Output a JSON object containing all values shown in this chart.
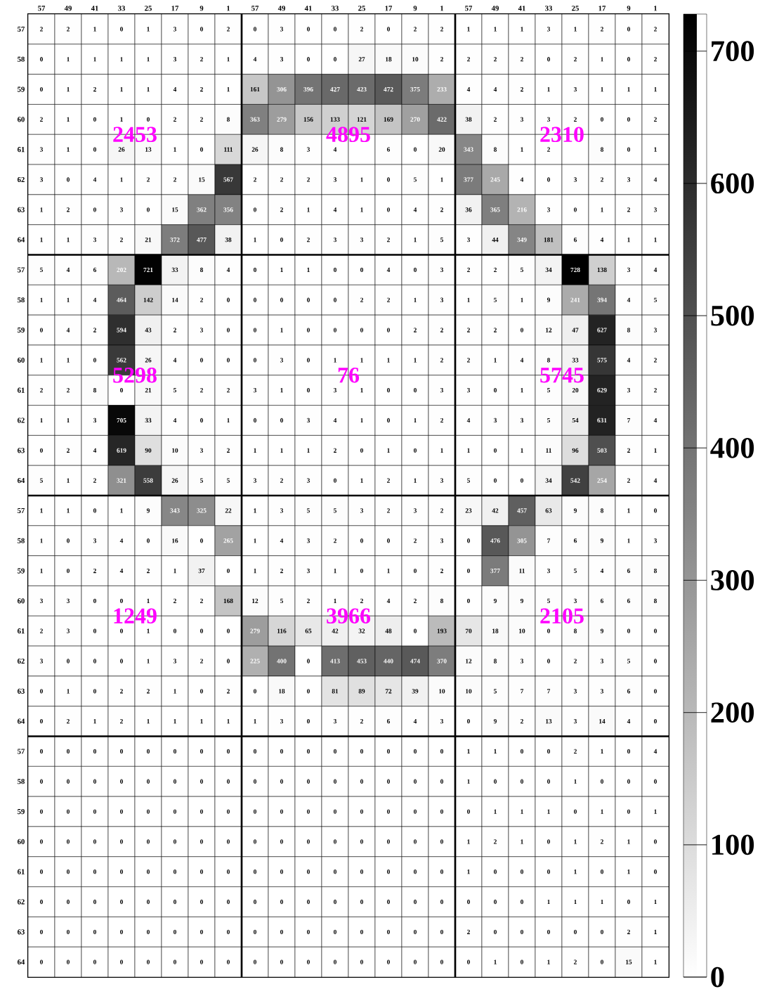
{
  "chart_data": {
    "type": "heatmap",
    "categories": [
      "57",
      "49",
      "41",
      "33",
      "25",
      "17",
      "9",
      "1",
      "57",
      "49",
      "41",
      "33",
      "25",
      "17",
      "9",
      "1",
      "57",
      "49",
      "41",
      "33",
      "25",
      "17",
      "9",
      "1"
    ],
    "y_categories": [
      "57",
      "58",
      "59",
      "60",
      "61",
      "62",
      "63",
      "64",
      "57",
      "58",
      "59",
      "60",
      "61",
      "62",
      "63",
      "64",
      "57",
      "58",
      "59",
      "60",
      "61",
      "62",
      "63",
      "64",
      "57",
      "58",
      "59",
      "60",
      "61",
      "62",
      "63",
      "64"
    ],
    "cells": [
      [
        2,
        2,
        1,
        0,
        1,
        3,
        0,
        2,
        0,
        3,
        0,
        0,
        2,
        0,
        2,
        2,
        1,
        1,
        1,
        3,
        1,
        2,
        0,
        2
      ],
      [
        0,
        1,
        1,
        1,
        1,
        3,
        2,
        1,
        4,
        3,
        0,
        0,
        27,
        18,
        10,
        2,
        2,
        2,
        2,
        0,
        2,
        1,
        0,
        2
      ],
      [
        0,
        1,
        2,
        1,
        1,
        4,
        2,
        1,
        161,
        306,
        396,
        427,
        423,
        472,
        375,
        233,
        4,
        4,
        2,
        1,
        3,
        1,
        1,
        1
      ],
      [
        2,
        1,
        0,
        1,
        0,
        2,
        2,
        8,
        363,
        279,
        156,
        133,
        121,
        169,
        270,
        422,
        38,
        2,
        3,
        3,
        2,
        0,
        0,
        2
      ],
      [
        3,
        1,
        0,
        26,
        13,
        1,
        0,
        111,
        26,
        8,
        3,
        4,
        null,
        6,
        0,
        20,
        343,
        8,
        1,
        2,
        null,
        8,
        0,
        1
      ],
      [
        3,
        0,
        4,
        1,
        2,
        2,
        15,
        567,
        2,
        2,
        2,
        3,
        1,
        0,
        5,
        1,
        377,
        245,
        4,
        0,
        3,
        2,
        3,
        4
      ],
      [
        1,
        2,
        0,
        3,
        0,
        15,
        362,
        356,
        0,
        2,
        1,
        4,
        1,
        0,
        4,
        2,
        36,
        365,
        216,
        3,
        0,
        1,
        2,
        3
      ],
      [
        1,
        1,
        3,
        2,
        21,
        372,
        477,
        38,
        1,
        0,
        2,
        3,
        3,
        2,
        1,
        5,
        3,
        44,
        349,
        181,
        6,
        4,
        1,
        1
      ],
      [
        5,
        4,
        6,
        202,
        721,
        33,
        8,
        4,
        0,
        1,
        1,
        0,
        0,
        4,
        0,
        3,
        2,
        2,
        5,
        34,
        728,
        138,
        3,
        4
      ],
      [
        1,
        1,
        4,
        464,
        142,
        14,
        2,
        0,
        0,
        0,
        0,
        0,
        2,
        2,
        1,
        3,
        1,
        5,
        1,
        9,
        241,
        394,
        4,
        5
      ],
      [
        0,
        4,
        2,
        594,
        43,
        2,
        3,
        0,
        0,
        1,
        0,
        0,
        0,
        0,
        2,
        2,
        2,
        2,
        0,
        12,
        47,
        627,
        8,
        3
      ],
      [
        1,
        1,
        0,
        562,
        26,
        4,
        0,
        0,
        0,
        3,
        0,
        1,
        1,
        1,
        1,
        2,
        2,
        1,
        4,
        8,
        33,
        575,
        4,
        2
      ],
      [
        2,
        2,
        8,
        0,
        21,
        5,
        2,
        2,
        3,
        1,
        0,
        3,
        1,
        0,
        0,
        3,
        3,
        0,
        1,
        5,
        20,
        629,
        3,
        2
      ],
      [
        1,
        1,
        3,
        705,
        33,
        4,
        0,
        1,
        0,
        0,
        3,
        4,
        1,
        0,
        1,
        2,
        4,
        3,
        3,
        5,
        54,
        631,
        7,
        4
      ],
      [
        0,
        2,
        4,
        619,
        90,
        10,
        3,
        2,
        1,
        1,
        1,
        2,
        0,
        1,
        0,
        1,
        1,
        0,
        1,
        11,
        96,
        503,
        2,
        1
      ],
      [
        5,
        1,
        2,
        321,
        558,
        26,
        5,
        5,
        3,
        2,
        3,
        0,
        1,
        2,
        1,
        3,
        5,
        0,
        0,
        34,
        542,
        254,
        2,
        4
      ],
      [
        1,
        1,
        0,
        1,
        9,
        343,
        325,
        22,
        1,
        3,
        5,
        5,
        3,
        2,
        3,
        2,
        23,
        42,
        457,
        63,
        9,
        8,
        1,
        0
      ],
      [
        1,
        0,
        3,
        4,
        0,
        16,
        0,
        265,
        1,
        4,
        3,
        2,
        0,
        0,
        2,
        3,
        0,
        476,
        305,
        7,
        6,
        9,
        1,
        3
      ],
      [
        1,
        0,
        2,
        4,
        2,
        1,
        37,
        0,
        1,
        2,
        3,
        1,
        0,
        1,
        0,
        2,
        0,
        377,
        11,
        3,
        5,
        4,
        6,
        8
      ],
      [
        3,
        3,
        0,
        0,
        1,
        2,
        2,
        168,
        12,
        5,
        2,
        1,
        2,
        4,
        2,
        8,
        0,
        9,
        9,
        5,
        3,
        6,
        6,
        8
      ],
      [
        2,
        3,
        0,
        0,
        1,
        0,
        0,
        0,
        279,
        116,
        65,
        42,
        32,
        48,
        0,
        193,
        70,
        18,
        10,
        0,
        8,
        9,
        0,
        0
      ],
      [
        3,
        0,
        0,
        0,
        1,
        3,
        2,
        0,
        225,
        400,
        0,
        413,
        453,
        440,
        474,
        370,
        12,
        8,
        3,
        0,
        2,
        3,
        5,
        0
      ],
      [
        0,
        1,
        0,
        2,
        2,
        1,
        0,
        2,
        0,
        18,
        0,
        81,
        89,
        72,
        39,
        10,
        10,
        5,
        7,
        7,
        3,
        3,
        6,
        0
      ],
      [
        0,
        2,
        1,
        2,
        1,
        1,
        1,
        1,
        1,
        3,
        0,
        3,
        2,
        6,
        4,
        3,
        0,
        9,
        2,
        13,
        3,
        14,
        4,
        0
      ],
      [
        0,
        0,
        0,
        0,
        0,
        0,
        0,
        0,
        0,
        0,
        0,
        0,
        0,
        0,
        0,
        0,
        1,
        1,
        0,
        0,
        2,
        1,
        0,
        4
      ],
      [
        0,
        0,
        0,
        0,
        0,
        0,
        0,
        0,
        0,
        0,
        0,
        0,
        0,
        0,
        0,
        0,
        1,
        0,
        0,
        0,
        1,
        0,
        0,
        0
      ],
      [
        0,
        0,
        0,
        0,
        0,
        0,
        0,
        0,
        0,
        0,
        0,
        0,
        0,
        0,
        0,
        0,
        0,
        1,
        1,
        1,
        0,
        1,
        0,
        1
      ],
      [
        0,
        0,
        0,
        0,
        0,
        0,
        0,
        0,
        0,
        0,
        0,
        0,
        0,
        0,
        0,
        0,
        1,
        2,
        1,
        0,
        1,
        2,
        1,
        0
      ],
      [
        0,
        0,
        0,
        0,
        0,
        0,
        0,
        0,
        0,
        0,
        0,
        0,
        0,
        0,
        0,
        0,
        1,
        0,
        0,
        0,
        1,
        0,
        1,
        0
      ],
      [
        0,
        0,
        0,
        0,
        0,
        0,
        0,
        0,
        0,
        0,
        0,
        0,
        0,
        0,
        0,
        0,
        0,
        0,
        0,
        1,
        1,
        1,
        0,
        1
      ],
      [
        0,
        0,
        0,
        0,
        0,
        0,
        0,
        0,
        0,
        0,
        0,
        0,
        0,
        0,
        0,
        0,
        2,
        0,
        0,
        0,
        0,
        0,
        2,
        1
      ],
      [
        0,
        0,
        0,
        0,
        0,
        0,
        0,
        0,
        0,
        0,
        0,
        0,
        0,
        0,
        0,
        0,
        0,
        1,
        0,
        1,
        2,
        0,
        15,
        1
      ]
    ],
    "clim": [
      0,
      728
    ],
    "cticks": [
      0,
      100,
      200,
      300,
      400,
      500,
      600,
      700
    ],
    "data_labels": true,
    "annotations": [
      "2453",
      "4895",
      "2310",
      "5298",
      "76",
      "5745",
      "1249",
      "3966",
      "2105"
    ]
  }
}
